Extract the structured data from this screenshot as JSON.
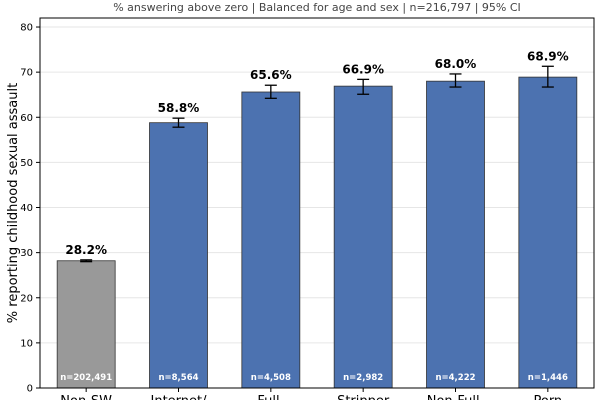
{
  "chart_data": {
    "type": "bar",
    "subtitle": "% answering above zero  |  Balanced for age and sex  |  n=216,797  |  95% CI",
    "ylabel": "% reporting childhood sexual assault",
    "xlabel": "",
    "ylim": [
      0,
      82
    ],
    "yticks": [
      0,
      10,
      20,
      30,
      40,
      50,
      60,
      70,
      80
    ],
    "grid": "horizontal",
    "categories": [
      "Non-SW",
      "Internet/",
      "Full-",
      "Stripper",
      "Non-Full-",
      "Porn"
    ],
    "values": [
      28.2,
      58.8,
      65.6,
      66.9,
      68.0,
      68.9
    ],
    "value_labels": [
      "28.2%",
      "58.8%",
      "65.6%",
      "66.9%",
      "68.0%",
      "68.9%"
    ],
    "ci_low": [
      28.0,
      57.8,
      64.2,
      65.1,
      66.7,
      66.7
    ],
    "ci_high": [
      28.4,
      59.8,
      67.1,
      68.4,
      69.6,
      71.3
    ],
    "n_labels": [
      "n=202,491",
      "n=8,564",
      "n=4,508",
      "n=2,982",
      "n=4,222",
      "n=1,446"
    ],
    "colors": [
      "#999999",
      "#4c72b0",
      "#4c72b0",
      "#4c72b0",
      "#4c72b0",
      "#4c72b0"
    ]
  }
}
